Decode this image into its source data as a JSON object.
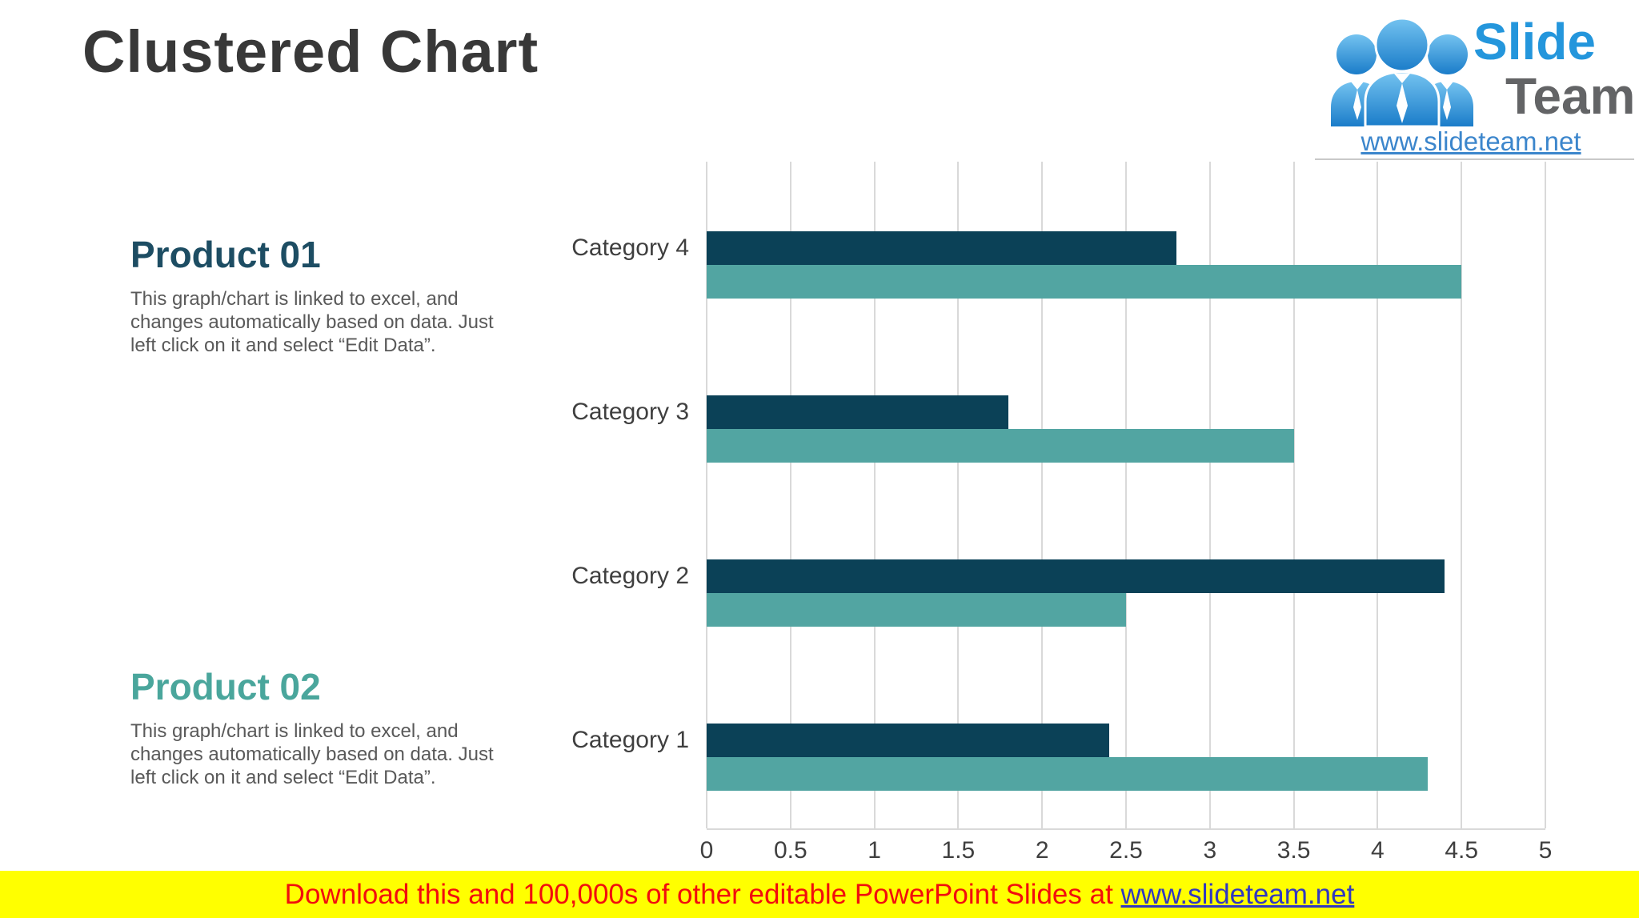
{
  "title": "Clustered Chart",
  "logo": {
    "slide": "Slide",
    "team": "Team",
    "url": "www.slideteam.net",
    "slide_color": "#2496dc",
    "team_color": "#636466",
    "url_color": "#3c86cc"
  },
  "products": [
    {
      "heading": "Product 01",
      "heading_color": "#1d4d63",
      "lines": [
        "This graph/chart is linked to excel, and",
        "changes automatically based on data. Just",
        "left click on it and select “Edit Data”."
      ]
    },
    {
      "heading": "Product 02",
      "heading_color": "#4aa69c",
      "lines": [
        "This graph/chart is linked to excel, and",
        "changes automatically based on data. Just",
        "left click on it and select “Edit Data”."
      ]
    }
  ],
  "chart_data": {
    "type": "bar",
    "orientation": "horizontal",
    "categories": [
      "Category 4",
      "Category 3",
      "Category 2",
      "Category 1"
    ],
    "series": [
      {
        "name": "Product 01",
        "color": "#0b4157",
        "values": [
          2.8,
          1.8,
          4.4,
          2.4
        ]
      },
      {
        "name": "Product 02",
        "color": "#52a5a2",
        "values": [
          4.5,
          3.5,
          2.5,
          4.3
        ]
      }
    ],
    "x_tick_labels": [
      "0",
      "0.5",
      "1",
      "1.5",
      "2",
      "2.5",
      "3",
      "3.5",
      "4",
      "4.5",
      "5"
    ],
    "xlim": [
      0,
      5
    ],
    "grid": true,
    "gridline_color": "#d9d9d9",
    "legend_position": "none"
  },
  "banner": {
    "text": "Download this and 100,000s of other editable PowerPoint Slides at ",
    "link": "www.slideteam.net",
    "bg_color": "#ffff00",
    "text_color": "#f20d0d",
    "link_color": "#3138c0"
  }
}
